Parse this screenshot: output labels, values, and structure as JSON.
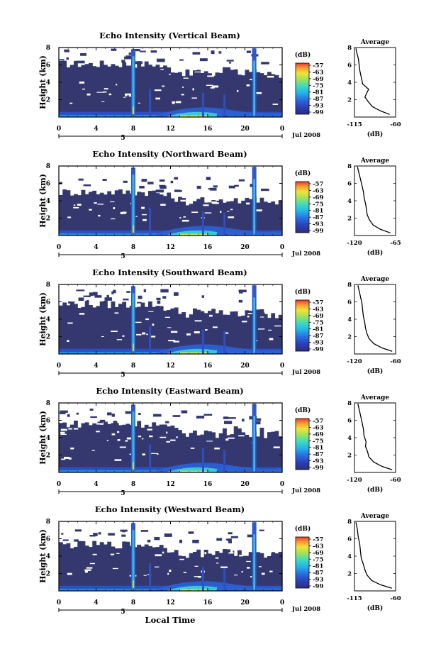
{
  "figure": {
    "global_xlabel": "Local Time",
    "date_label": "Jul 2008",
    "day_label": "5"
  },
  "chart_data": [
    {
      "type": "heatmap",
      "title": "Echo Intensity (Vertical Beam)",
      "ylabel": "Height (km)",
      "xlabel": "Local Time",
      "xlim": [
        0,
        24
      ],
      "xticks": [
        "0",
        "4",
        "8",
        "12",
        "16",
        "20",
        "0"
      ],
      "ylim": [
        0,
        8
      ],
      "yticks": [
        "2",
        "4",
        "6",
        "8"
      ],
      "colorbar": {
        "label": "(dB)",
        "ticks": [
          "-57",
          "-63",
          "-69",
          "-75",
          "-81",
          "-87",
          "-93",
          "-99"
        ]
      },
      "profile": {
        "title": "Average",
        "xlabel": "(dB)",
        "xlim": [
          -115,
          -60
        ],
        "xticks": [
          "-115",
          "-60"
        ],
        "ylim": [
          0,
          8
        ],
        "yticks": [
          "2",
          "4",
          "6",
          "8"
        ],
        "x_dB": [
          -68,
          -80,
          -91,
          -97,
          -101,
          -99,
          -96,
          -104,
          -106,
          -108,
          -109,
          -110,
          -112,
          -113
        ],
        "y_km": [
          0.3,
          0.7,
          1.2,
          1.8,
          2.3,
          2.7,
          3.2,
          3.8,
          4.6,
          5.4,
          6.2,
          6.8,
          7.4,
          7.9
        ]
      }
    },
    {
      "type": "heatmap",
      "title": "Echo Intensity (Northward Beam)",
      "ylabel": "Height (km)",
      "xlabel": "Local Time",
      "xlim": [
        0,
        24
      ],
      "xticks": [
        "0",
        "4",
        "8",
        "12",
        "16",
        "20",
        "0"
      ],
      "ylim": [
        0,
        8
      ],
      "yticks": [
        "2",
        "4",
        "6",
        "8"
      ],
      "colorbar": {
        "label": "(dB)",
        "ticks": [
          "-57",
          "-63",
          "-69",
          "-75",
          "-81",
          "-87",
          "-93",
          "-99"
        ]
      },
      "profile": {
        "title": "Average",
        "xlabel": "(dB)",
        "xlim": [
          -120,
          -65
        ],
        "xticks": [
          "-120",
          "-65"
        ],
        "ylim": [
          0,
          8
        ],
        "yticks": [
          "2",
          "4",
          "6",
          "8"
        ],
        "x_dB": [
          -72,
          -85,
          -95,
          -100,
          -103,
          -104,
          -105,
          -107,
          -108,
          -110,
          -112,
          -114,
          -116
        ],
        "y_km": [
          0.3,
          0.7,
          1.2,
          1.8,
          2.4,
          3.0,
          3.6,
          4.3,
          5.0,
          5.8,
          6.5,
          7.2,
          7.9
        ]
      }
    },
    {
      "type": "heatmap",
      "title": "Echo Intensity (Southward Beam)",
      "ylabel": "Height (km)",
      "xlabel": "Local Time",
      "xlim": [
        0,
        24
      ],
      "xticks": [
        "0",
        "4",
        "8",
        "12",
        "16",
        "20",
        "0"
      ],
      "ylim": [
        0,
        8
      ],
      "yticks": [
        "2",
        "4",
        "6",
        "8"
      ],
      "colorbar": {
        "label": "(dB)",
        "ticks": [
          "-57",
          "-63",
          "-69",
          "-75",
          "-81",
          "-87",
          "-93",
          "-99"
        ]
      },
      "profile": {
        "title": "Average",
        "xlabel": "(dB)",
        "xlim": [
          -120,
          -60
        ],
        "xticks": [
          "-120",
          "-60"
        ],
        "ylim": [
          0,
          8
        ],
        "yticks": [
          "2",
          "4",
          "6",
          "8"
        ],
        "x_dB": [
          -65,
          -80,
          -92,
          -99,
          -102,
          -104,
          -105,
          -107,
          -108,
          -109,
          -111,
          -113,
          -115
        ],
        "y_km": [
          0.3,
          0.7,
          1.2,
          1.8,
          2.4,
          3.0,
          3.6,
          4.3,
          5.0,
          5.8,
          6.5,
          7.2,
          7.9
        ]
      }
    },
    {
      "type": "heatmap",
      "title": "Echo Intensity (Eastward Beam)",
      "ylabel": "Height (km)",
      "xlabel": "Local Time",
      "xlim": [
        0,
        24
      ],
      "xticks": [
        "0",
        "4",
        "8",
        "12",
        "16",
        "20",
        "0"
      ],
      "ylim": [
        0,
        8
      ],
      "yticks": [
        "2",
        "4",
        "6",
        "8"
      ],
      "colorbar": {
        "label": "(dB)",
        "ticks": [
          "-57",
          "-63",
          "-69",
          "-75",
          "-81",
          "-87",
          "-93",
          "-99"
        ]
      },
      "profile": {
        "title": "Average",
        "xlabel": "(dB)",
        "xlim": [
          -120,
          -60
        ],
        "xticks": [
          "-120",
          "-60"
        ],
        "ylim": [
          0,
          8
        ],
        "yticks": [
          "2",
          "4",
          "6",
          "8"
        ],
        "x_dB": [
          -65,
          -80,
          -92,
          -99,
          -101,
          -104,
          -103,
          -106,
          -107,
          -109,
          -111,
          -113,
          -115
        ],
        "y_km": [
          0.3,
          0.7,
          1.2,
          1.8,
          2.4,
          3.0,
          3.5,
          4.2,
          5.0,
          5.8,
          6.5,
          7.2,
          7.9
        ]
      }
    },
    {
      "type": "heatmap",
      "title": "Echo Intensity (Westward Beam)",
      "ylabel": "Height (km)",
      "xlabel": "Local Time",
      "xlim": [
        0,
        24
      ],
      "xticks": [
        "0",
        "4",
        "8",
        "12",
        "16",
        "20",
        "0"
      ],
      "ylim": [
        0,
        8
      ],
      "yticks": [
        "2",
        "4",
        "6",
        "8"
      ],
      "colorbar": {
        "label": "(dB)",
        "ticks": [
          "-57",
          "-63",
          "-69",
          "-75",
          "-81",
          "-87",
          "-93",
          "-99"
        ]
      },
      "profile": {
        "title": "Average",
        "xlabel": "(dB)",
        "xlim": [
          -115,
          -60
        ],
        "xticks": [
          "-115",
          "-60"
        ],
        "ylim": [
          0,
          8
        ],
        "yticks": [
          "2",
          "4",
          "6",
          "8"
        ],
        "x_dB": [
          -65,
          -80,
          -92,
          -98,
          -101,
          -103,
          -106,
          -107,
          -108,
          -110,
          -111,
          -113
        ],
        "y_km": [
          0.3,
          0.7,
          1.2,
          1.8,
          2.4,
          3.0,
          3.8,
          4.6,
          5.4,
          6.2,
          7.0,
          7.9
        ]
      }
    }
  ]
}
